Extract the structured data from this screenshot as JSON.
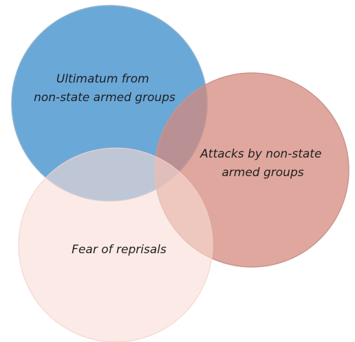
{
  "diagram": {
    "type": "venn",
    "sets": [
      {
        "id": "ultimatum",
        "label_lines": [
          "Ultimatum from",
          "non-state armed groups"
        ],
        "fill": "#6aa8d8",
        "stroke": "#8fb4cf"
      },
      {
        "id": "attacks",
        "label_lines": [
          "Attacks by non-state",
          "armed groups"
        ],
        "fill": "#d48a7e",
        "stroke": "#c9958c"
      },
      {
        "id": "reprisals",
        "label_lines": [
          "Fear of reprisals"
        ],
        "fill": "#f8dcd6",
        "stroke": "#f3d2cb"
      }
    ]
  }
}
